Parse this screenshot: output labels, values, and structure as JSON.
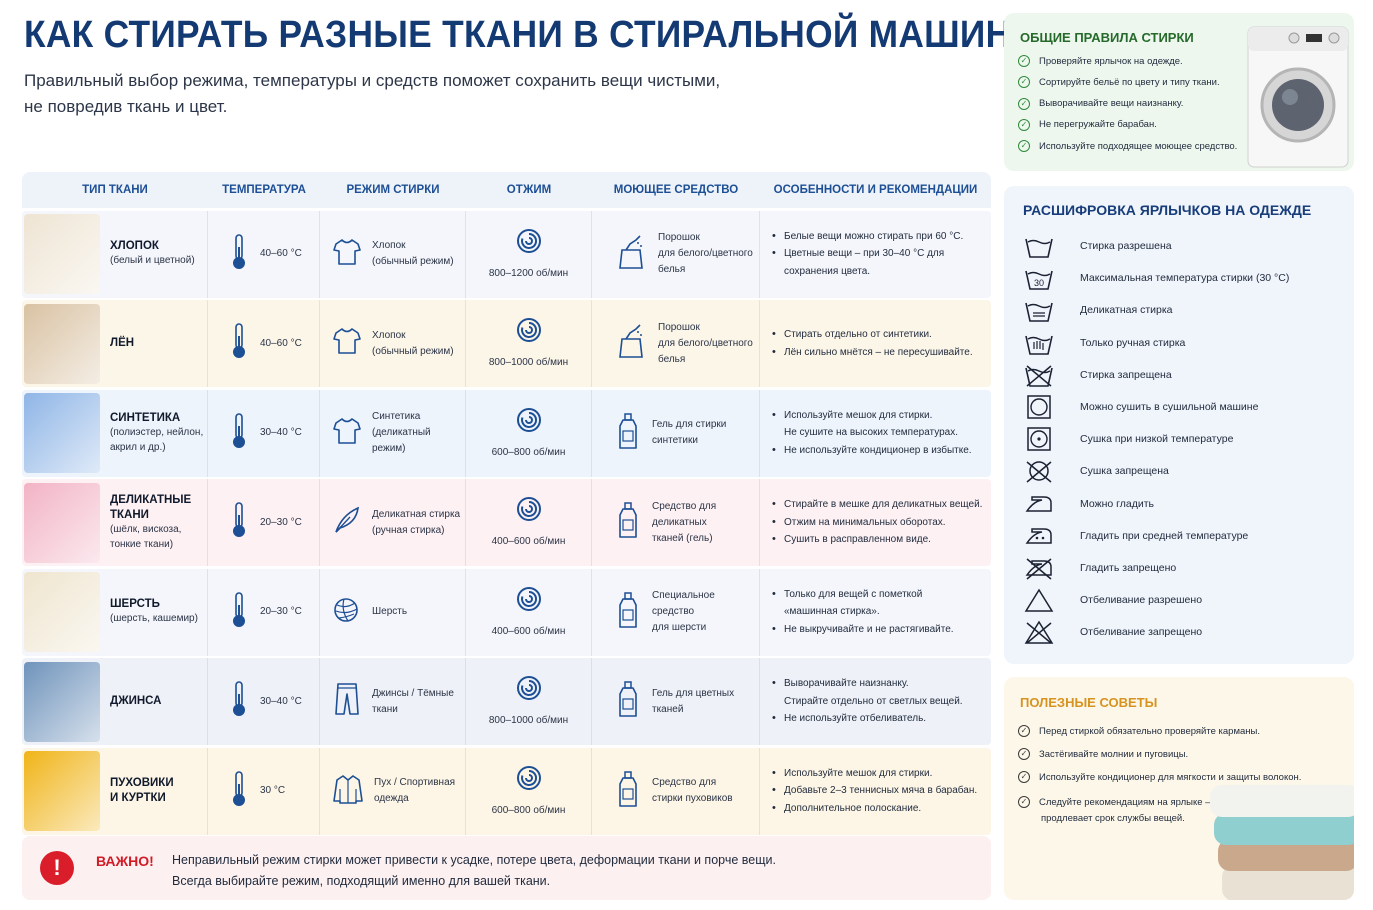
{
  "title": "КАК СТИРАТЬ РАЗНЫЕ ТКАНИ В СТИРАЛЬНОЙ МАШИНЕ",
  "subtitle_line1": "Правильный выбор режима, температуры и средств поможет сохранить вещи чистыми,",
  "subtitle_line2": "не повредив ткань и цвет.",
  "table": {
    "headers": [
      "ТИП ТКАНИ",
      "ТЕМПЕРАТУРА",
      "РЕЖИМ СТИРКИ",
      "ОТЖИМ",
      "МОЮЩЕЕ СРЕДСТВО",
      "ОСОБЕННОСТИ И РЕКОМЕНДАЦИИ"
    ],
    "rows": [
      {
        "name": "ХЛОПОК",
        "sub": [
          "(белый и цветной)"
        ],
        "temp": "40–60 °C",
        "mode": [
          "Хлопок",
          "(обычный режим)"
        ],
        "mode_icon": "tshirt-icon",
        "spin": "800–1200 об/мин",
        "detergent": [
          "Порошок",
          "для белого/цветного",
          "белья"
        ],
        "det_icon": "powder-icon",
        "recs": [
          {
            "t": "Белые вещи можно стирать при 60 °C.",
            "b": true
          },
          {
            "t": "Цветные вещи – при 30–40 °C для",
            "b": true
          },
          {
            "t": "сохранения цвета.",
            "b": false
          }
        ],
        "bg": "#f4f6fb",
        "thumb": "#eee4d3"
      },
      {
        "name": "ЛЁН",
        "sub": [],
        "temp": "40–60 °C",
        "mode": [
          "Хлопок",
          "(обычный режим)"
        ],
        "mode_icon": "tshirt-icon",
        "spin": "800–1000 об/мин",
        "detergent": [
          "Порошок",
          "для белого/цветного",
          "белья"
        ],
        "det_icon": "powder-icon",
        "recs": [
          {
            "t": "Стирать отдельно от синтетики.",
            "b": true
          },
          {
            "t": "Лён сильно мнётся – не пересушивайте.",
            "b": true
          }
        ],
        "bg": "#fcf6e9",
        "thumb": "#d9c2a3"
      },
      {
        "name": "СИНТЕТИКА",
        "sub": [
          "(полиэстер, нейлон,",
          "акрил и др.)"
        ],
        "temp": "30–40 °C",
        "mode": [
          "Синтетика",
          "(деликатный режим)"
        ],
        "mode_icon": "tshirt-icon",
        "spin": "600–800 об/мин",
        "detergent": [
          "Гель для стирки",
          "синтетики"
        ],
        "det_icon": "gel-bottle-icon",
        "recs": [
          {
            "t": "Используйте мешок для стирки.",
            "b": true
          },
          {
            "t": "Не сушите на высоких температурах.",
            "b": false
          },
          {
            "t": "Не используйте кондиционер в избытке.",
            "b": true
          }
        ],
        "bg": "#eef4fc",
        "thumb": "#8fb5e6"
      },
      {
        "name": "ДЕЛИКАТНЫЕ ТКАНИ",
        "sub": [
          "(шёлк, вискоза,",
          "тонкие ткани)"
        ],
        "temp": "20–30 °C",
        "mode": [
          "Деликатная стирка",
          "(ручная стирка)"
        ],
        "mode_icon": "feather-icon",
        "spin": "400–600 об/мин",
        "detergent": [
          "Средство для деликатных",
          "тканей (гель)"
        ],
        "det_icon": "gel-bottle-icon",
        "recs": [
          {
            "t": "Стирайте в мешке для деликатных вещей.",
            "b": true
          },
          {
            "t": "Отжим на минимальных оборотах.",
            "b": true
          },
          {
            "t": "Сушить в расправленном виде.",
            "b": true
          }
        ],
        "bg": "#fdf1f3",
        "thumb": "#f2b3c5"
      },
      {
        "name": "ШЕРСТЬ",
        "sub": [
          "(шерсть, кашемир)"
        ],
        "temp": "20–30 °C",
        "mode": [
          "Шерсть"
        ],
        "mode_icon": "yarn-ball-icon",
        "spin": "400–600 об/мин",
        "detergent": [
          "Специальное средство",
          "для шерсти"
        ],
        "det_icon": "gel-bottle-icon",
        "recs": [
          {
            "t": "Только для вещей с пометкой",
            "b": true
          },
          {
            "t": "«машинная стирка».",
            "b": false
          },
          {
            "t": "Не выкручивайте и не растягивайте.",
            "b": true
          }
        ],
        "bg": "#f4f6fb",
        "thumb": "#efe5cf"
      },
      {
        "name": "ДЖИНСА",
        "sub": [],
        "temp": "30–40 °C",
        "mode": [
          "Джинсы / Тёмные",
          "ткани"
        ],
        "mode_icon": "jeans-icon",
        "spin": "800–1000 об/мин",
        "detergent": [
          "Гель для цветных",
          "тканей"
        ],
        "det_icon": "gel-bottle-icon",
        "recs": [
          {
            "t": "Выворачивайте наизнанку.",
            "b": true
          },
          {
            "t": "Стирайте отдельно от светлых вещей.",
            "b": false
          },
          {
            "t": "Не используйте отбеливатель.",
            "b": true
          }
        ],
        "bg": "#eef1f7",
        "thumb": "#6f93bb"
      },
      {
        "name": "ПУХОВИКИ",
        "name2": "И КУРТКИ",
        "sub": [],
        "temp": "30 °C",
        "mode": [
          "Пух / Спортивная",
          "одежда"
        ],
        "mode_icon": "jacket-icon",
        "spin": "600–800 об/мин",
        "detergent": [
          "Средство для",
          "стирки пуховиков"
        ],
        "det_icon": "gel-bottle-icon",
        "recs": [
          {
            "t": "Используйте мешок для стирки.",
            "b": true
          },
          {
            "t": "Добавьте 2–3 теннисных мяча в барабан.",
            "b": true
          },
          {
            "t": "Дополнительное полоскание.",
            "b": true
          }
        ],
        "bg": "#fdf6e6",
        "thumb": "#f0b418"
      }
    ]
  },
  "warning": {
    "icon": "!",
    "label": "ВАЖНО!",
    "line1": "Неправильный режим стирки может привести к усадке, потере цвета, деформации ткани и порче вещи.",
    "line2": "Всегда выбирайте режим, подходящий именно для вашей ткани."
  },
  "general": {
    "title": "ОБЩИЕ ПРАВИЛА СТИРКИ",
    "items": [
      "Проверяйте ярлычок на одежде.",
      "Сортируйте бельё по цвету и типу ткани.",
      "Выворачивайте вещи наизнанку.",
      "Не перегружайте барабан.",
      "Используйте подходящее моющее средство."
    ]
  },
  "labels": {
    "title": "РАСШИФРОВКА ЯРЛЫЧКОВ НА ОДЕЖДЕ",
    "items": [
      {
        "icon": "wash-tub-icon",
        "text": "Стирка разрешена"
      },
      {
        "icon": "wash-30-icon",
        "text": "Максимальная температура стирки (30 °C)",
        "num": "30"
      },
      {
        "icon": "delicate-wash-icon",
        "text": "Деликатная стирка"
      },
      {
        "icon": "hand-wash-icon",
        "text": "Только ручная стирка"
      },
      {
        "icon": "no-wash-icon",
        "text": "Стирка запрещена"
      },
      {
        "icon": "tumble-dry-icon",
        "text": "Можно сушить в сушильной машине"
      },
      {
        "icon": "tumble-dry-low-icon",
        "text": "Сушка при низкой температуре"
      },
      {
        "icon": "no-tumble-dry-icon",
        "text": "Сушка запрещена"
      },
      {
        "icon": "iron-icon",
        "text": "Можно гладить"
      },
      {
        "icon": "iron-medium-icon",
        "text": "Гладить при средней температуре"
      },
      {
        "icon": "no-iron-icon",
        "text": "Гладить запрещено"
      },
      {
        "icon": "bleach-icon",
        "text": "Отбеливание разрешено"
      },
      {
        "icon": "no-bleach-icon",
        "text": "Отбеливание запрещено"
      }
    ]
  },
  "tips": {
    "title": "ПОЛЕЗНЫЕ СОВЕТЫ",
    "items": [
      "Перед стиркой обязательно проверяйте карманы.",
      "Застёгивайте молнии и пуговицы.",
      "Используйте кондиционер для мягкости и защиты волокон.",
      "Следуйте рекомендациям на ярлыке – это"
    ],
    "item4_line2": "продлевает срок службы вещей."
  },
  "colors": {
    "title": "#143a74",
    "header": "#1d4f95",
    "danger": "#d91d2a",
    "green": "#256a2b",
    "orange": "#d7931f"
  }
}
